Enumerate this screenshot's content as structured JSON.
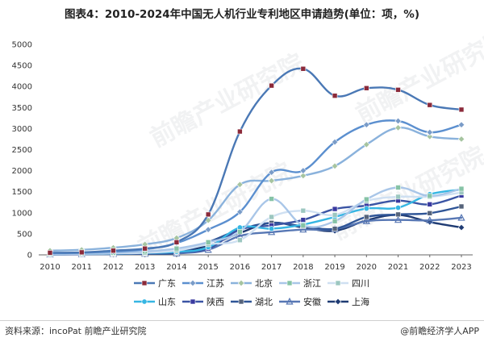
{
  "title": "图表4：2010-2024年中国无人机行业专利地区申请趋势(单位：项，%)",
  "source": "资料来源：incoPat 前瞻产业研究院",
  "brand": "@前瞻经济学人APP",
  "watermark": "前瞻产业研究院",
  "chart_data": {
    "type": "line",
    "title": "图表4：2010-2024年中国无人机行业专利地区申请趋势(单位：项，%)",
    "xlabel": "",
    "ylabel": "",
    "x": [
      "2010",
      "2011",
      "2012",
      "2013",
      "2014",
      "2015",
      "2016",
      "2017",
      "2018",
      "2019",
      "2020",
      "2021",
      "2022",
      "2023"
    ],
    "ylim": [
      0,
      5000
    ],
    "yticks": [
      0,
      500,
      1000,
      1500,
      2000,
      2500,
      3000,
      3500,
      4000,
      4500,
      5000
    ],
    "grid": false,
    "legend_position": "bottom",
    "series": [
      {
        "name": "广东",
        "color": "#4a78b5",
        "marker": "square",
        "marker_color": "#8b2a3a",
        "values": [
          50,
          60,
          100,
          150,
          300,
          960,
          2930,
          4020,
          4420,
          3780,
          3960,
          3920,
          3560,
          3450
        ]
      },
      {
        "name": "江苏",
        "color": "#5b8fcf",
        "marker": "diamond",
        "marker_color": "#7a9cc8",
        "values": [
          40,
          50,
          80,
          130,
          280,
          600,
          1020,
          1960,
          2000,
          2680,
          3090,
          3180,
          2910,
          3090
        ]
      },
      {
        "name": "北京",
        "color": "#8ab2dc",
        "marker": "diamond",
        "marker_color": "#a6c4a0",
        "values": [
          100,
          120,
          170,
          250,
          400,
          820,
          1670,
          1760,
          1880,
          2110,
          2620,
          3020,
          2810,
          2750
        ]
      },
      {
        "name": "浙江",
        "color": "#a9c6e8",
        "marker": "square",
        "marker_color": "#86c3a6",
        "values": [
          20,
          30,
          50,
          80,
          150,
          300,
          550,
          1330,
          700,
          800,
          1320,
          1600,
          1400,
          1570
        ]
      },
      {
        "name": "四川",
        "color": "#cfe0f2",
        "marker": "square",
        "marker_color": "#9cc7c0",
        "values": [
          20,
          25,
          35,
          50,
          100,
          250,
          350,
          900,
          1050,
          950,
          1280,
          1380,
          1380,
          1480
        ]
      },
      {
        "name": "山东",
        "color": "#36b6e3",
        "marker": "circle",
        "marker_color": "#36b6e3",
        "values": [
          20,
          25,
          30,
          45,
          70,
          180,
          650,
          620,
          720,
          900,
          1100,
          1120,
          1440,
          1550
        ]
      },
      {
        "name": "陕西",
        "color": "#3a54a4",
        "marker": "square",
        "marker_color": "#3a3aa0",
        "values": [
          15,
          20,
          30,
          40,
          60,
          150,
          600,
          700,
          830,
          1090,
          1170,
          1290,
          1200,
          1410
        ]
      },
      {
        "name": "湖北",
        "color": "#2f5597",
        "marker": "square",
        "marker_color": "#55637a",
        "values": [
          10,
          15,
          20,
          30,
          50,
          300,
          600,
          760,
          680,
          620,
          900,
          960,
          990,
          1150
        ]
      },
      {
        "name": "安徽",
        "color": "#5777b4",
        "marker": "triangle",
        "marker_color": "#5777b4",
        "values": [
          10,
          15,
          20,
          25,
          35,
          120,
          450,
          540,
          600,
          610,
          800,
          830,
          820,
          880
        ]
      },
      {
        "name": "上海",
        "color": "#1f3b73",
        "marker": "diamond",
        "marker_color": "#1f3b73",
        "values": [
          30,
          35,
          40,
          50,
          70,
          220,
          520,
          760,
          650,
          570,
          820,
          950,
          780,
          650
        ]
      }
    ]
  }
}
